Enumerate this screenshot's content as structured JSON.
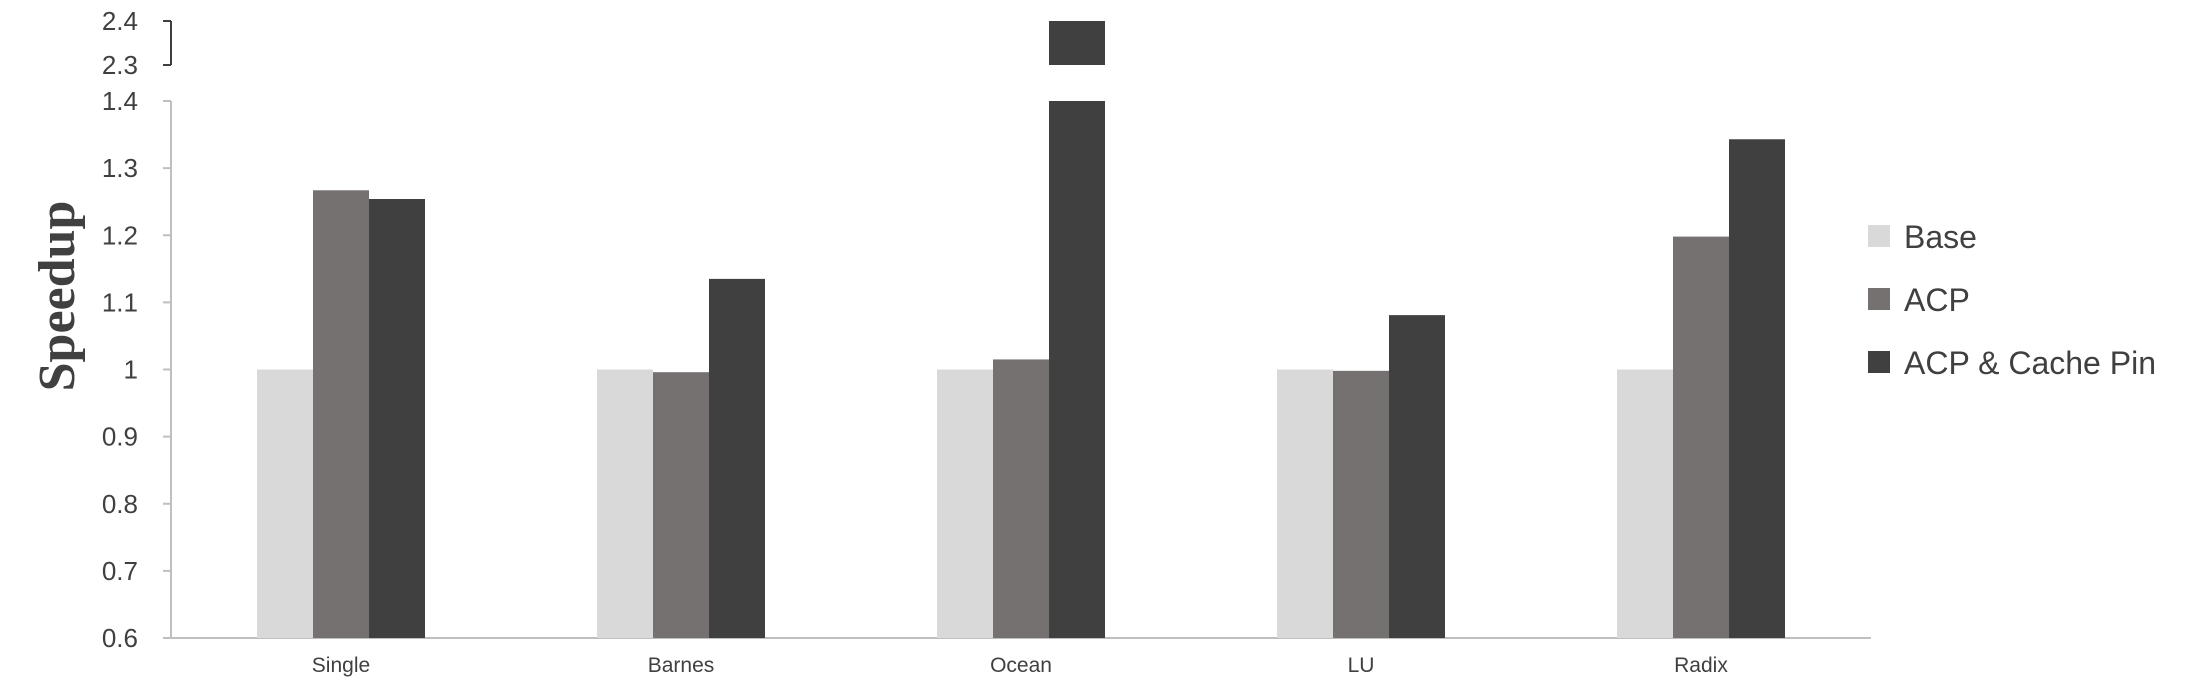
{
  "chart_data": {
    "type": "bar",
    "title": "",
    "xlabel": "",
    "ylabel": "Speedup",
    "categories": [
      "Single",
      "Barnes",
      "Ocean",
      "LU",
      "Radix"
    ],
    "series": [
      {
        "name": "Base",
        "color": "#d9d9d9",
        "values": [
          1.0,
          1.0,
          1.0,
          1.0,
          1.0
        ]
      },
      {
        "name": "ACP",
        "color": "#767171",
        "values": [
          1.267,
          0.996,
          1.015,
          0.998,
          1.198
        ]
      },
      {
        "name": "ACP & Cache Pin",
        "color": "#404040",
        "values": [
          1.254,
          1.135,
          2.4,
          1.081,
          1.343
        ]
      }
    ],
    "ylim": [
      0.6,
      2.4
    ],
    "axis_break": {
      "from": 1.4,
      "to": 2.3
    },
    "yticks_lower": [
      "0.6",
      "0.7",
      "0.8",
      "0.9",
      "1",
      "1.1",
      "1.2",
      "1.3",
      "1.4"
    ],
    "yticks_upper": [
      "2.3",
      "2.4"
    ],
    "legend_position": "right",
    "grid": false
  }
}
